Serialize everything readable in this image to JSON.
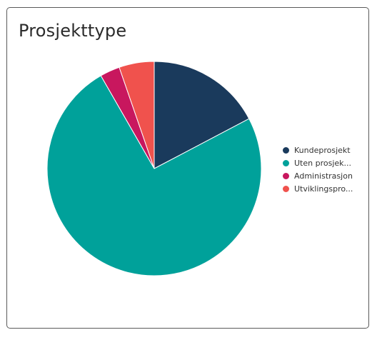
{
  "card": {
    "title": "Prosjekttype"
  },
  "chart_data": {
    "type": "pie",
    "title": "Prosjekttype",
    "start_angle_deg": 0,
    "direction": "clockwise",
    "series": [
      {
        "name": "Prosjekttype",
        "slices": [
          {
            "label": "Kundeprosjekt",
            "legend_text": "Kundeprosjekt",
            "value": 17.3,
            "color": "#1a3a5c"
          },
          {
            "label": "Uten prosjekt",
            "legend_text": "Uten prosjek...",
            "value": 74.4,
            "color": "#00a19a"
          },
          {
            "label": "Administrasjon",
            "legend_text": "Administrasjon",
            "value": 3.0,
            "color": "#c8175e"
          },
          {
            "label": "Utviklingsprosjekt",
            "legend_text": "Utviklingspro...",
            "value": 5.3,
            "color": "#f0524d"
          }
        ]
      }
    ],
    "legend_position": "right"
  }
}
